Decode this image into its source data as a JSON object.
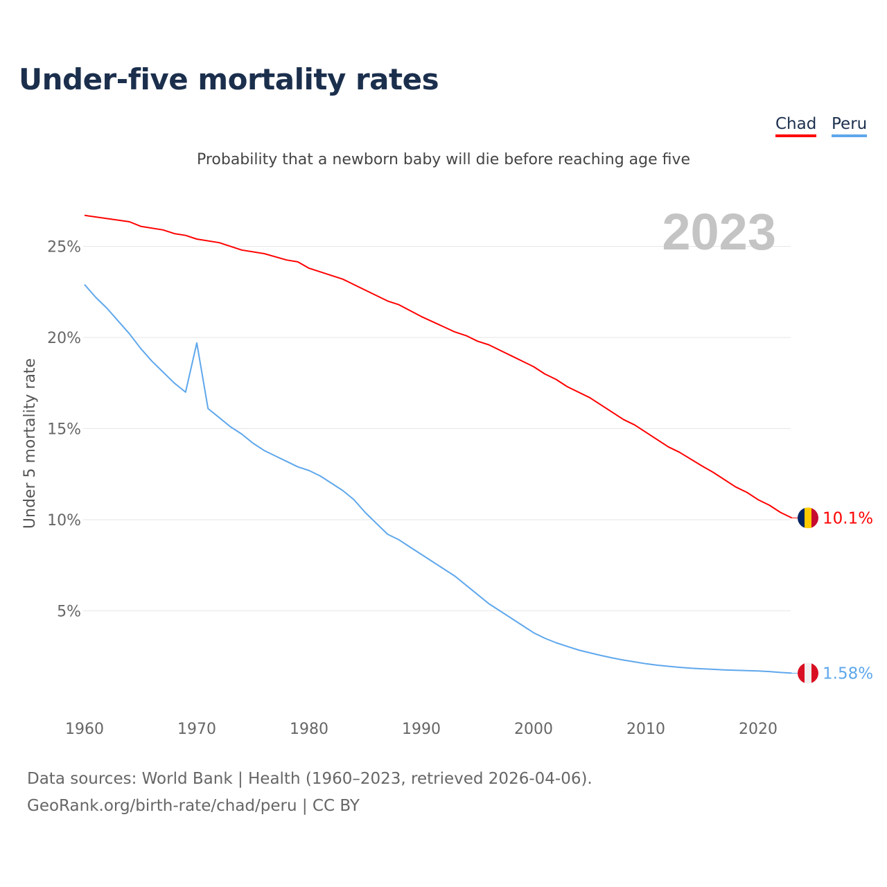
{
  "title": "Under-five mortality rates",
  "subtitle": "Probability that a newborn baby will die before reaching age five",
  "footer": {
    "line1": "Data sources: World Bank | Health (1960–2023, retrieved 2026-04-06).",
    "line2": "GeoRank.org/birth-rate/chad/peru | CC BY"
  },
  "chart_data": {
    "type": "line",
    "title": "Under-five mortality rates",
    "ylabel": "Under 5 mortality rate",
    "xlabel": "",
    "year_label": "2023",
    "xlim": [
      1960,
      2023
    ],
    "ylim": [
      0,
      27
    ],
    "xticks": [
      {
        "v": 1960,
        "label": "1960"
      },
      {
        "v": 1970,
        "label": "1970"
      },
      {
        "v": 1980,
        "label": "1980"
      },
      {
        "v": 1990,
        "label": "1990"
      },
      {
        "v": 2000,
        "label": "2000"
      },
      {
        "v": 2010,
        "label": "2010"
      },
      {
        "v": 2020,
        "label": "2020"
      }
    ],
    "yticks": [
      {
        "v": 5,
        "label": "5%"
      },
      {
        "v": 10,
        "label": "10%"
      },
      {
        "v": 15,
        "label": "15%"
      },
      {
        "v": 20,
        "label": "20%"
      },
      {
        "v": 25,
        "label": "25%"
      }
    ],
    "grid": true,
    "legend_position": "top-right",
    "series": [
      {
        "name": "Chad",
        "color": "#ff0000",
        "end_label": "10.1%",
        "flag": [
          "#002664",
          "#fecb00",
          "#c60c30"
        ],
        "x": [
          1960,
          1964,
          1965,
          1967,
          1968,
          1969,
          1970,
          1972,
          1974,
          1976,
          1978,
          1979,
          1980,
          1983,
          1985,
          1987,
          1988,
          1990,
          1993,
          1994,
          1995,
          1996,
          1998,
          2000,
          2001,
          2002,
          2003,
          2005,
          2008,
          2009,
          2012,
          2013,
          2015,
          2016,
          2018,
          2019,
          2020,
          2021,
          2022,
          2023
        ],
        "y": [
          26.7,
          26.35,
          26.1,
          25.9,
          25.7,
          25.6,
          25.4,
          25.2,
          24.8,
          24.6,
          24.25,
          24.15,
          23.8,
          23.2,
          22.6,
          22.0,
          21.8,
          21.15,
          20.3,
          20.1,
          19.8,
          19.6,
          19.0,
          18.4,
          18.0,
          17.7,
          17.3,
          16.7,
          15.5,
          15.2,
          14.0,
          13.7,
          12.95,
          12.6,
          11.8,
          11.5,
          11.1,
          10.8,
          10.4,
          10.1
        ]
      },
      {
        "name": "Peru",
        "color": "#5ea7ec",
        "end_label": "1.58%",
        "flag": [
          "#d91023",
          "#f0f0f0",
          "#d91023"
        ],
        "x": [
          1960,
          1961,
          1962,
          1963,
          1964,
          1965,
          1966,
          1967,
          1968,
          1969,
          1970,
          1971,
          1972,
          1973,
          1974,
          1975,
          1976,
          1977,
          1978,
          1979,
          1980,
          1981,
          1982,
          1983,
          1984,
          1985,
          1986,
          1987,
          1988,
          1989,
          1990,
          1991,
          1992,
          1993,
          1994,
          1995,
          1996,
          1997,
          1998,
          1999,
          2000,
          2001,
          2002,
          2003,
          2004,
          2005,
          2006,
          2007,
          2008,
          2009,
          2010,
          2011,
          2012,
          2013,
          2014,
          2015,
          2016,
          2017,
          2018,
          2019,
          2020,
          2021,
          2022,
          2023
        ],
        "y": [
          22.9,
          22.2,
          21.6,
          20.9,
          20.2,
          19.4,
          18.7,
          18.1,
          17.5,
          17.0,
          19.7,
          16.1,
          15.6,
          15.1,
          14.7,
          14.2,
          13.8,
          13.5,
          13.2,
          12.9,
          12.7,
          12.4,
          12.0,
          11.6,
          11.1,
          10.4,
          9.8,
          9.2,
          8.9,
          8.5,
          8.1,
          7.7,
          7.3,
          6.9,
          6.4,
          5.9,
          5.4,
          5.0,
          4.6,
          4.2,
          3.8,
          3.5,
          3.25,
          3.05,
          2.85,
          2.7,
          2.55,
          2.42,
          2.3,
          2.2,
          2.1,
          2.02,
          1.96,
          1.9,
          1.85,
          1.82,
          1.79,
          1.76,
          1.74,
          1.72,
          1.7,
          1.67,
          1.62,
          1.58
        ]
      }
    ]
  }
}
